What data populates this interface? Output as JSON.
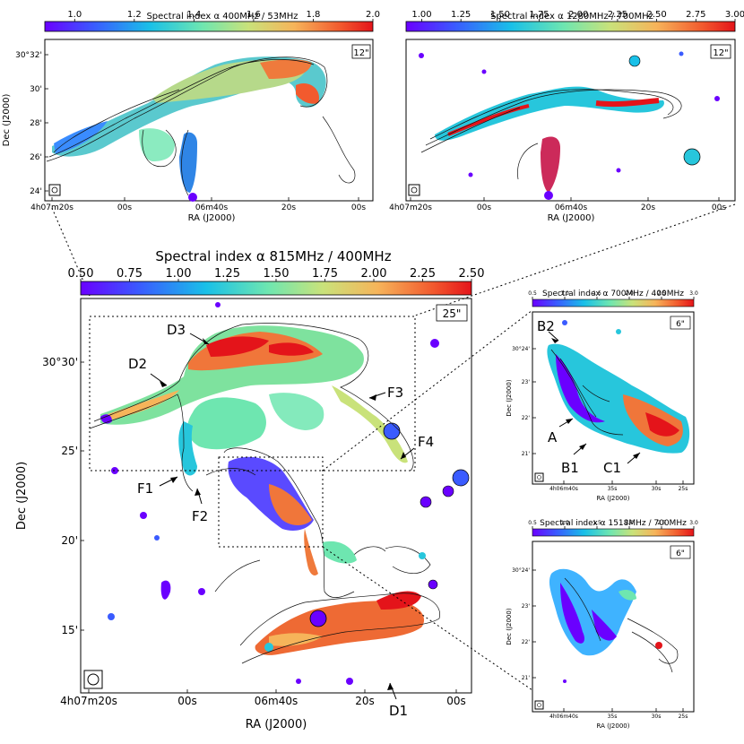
{
  "chart_data": [
    {
      "type": "heatmap",
      "panel": "top-left",
      "colorbar": {
        "title": "Spectral index α 400MHz / 53MHz",
        "ticks": [
          "1.0",
          "1.2",
          "1.4",
          "1.6",
          "1.8",
          "2.0"
        ],
        "range": [
          0.9,
          2.0
        ]
      },
      "beam_label": "12\"",
      "ylabel": "Dec (J2000)",
      "xlabel": "RA (J2000)",
      "yticks": [
        "30°32'",
        "30'",
        "28'",
        "26'",
        "24'"
      ],
      "xticks": [
        "4h07m20s",
        "00s",
        "06m40s",
        "20s",
        "00s"
      ]
    },
    {
      "type": "heatmap",
      "panel": "top-right",
      "colorbar": {
        "title": "Spectral index α 1280MHz / 700MHz",
        "ticks": [
          "1.00",
          "1.25",
          "1.50",
          "1.75",
          "2.00",
          "2.25",
          "2.50",
          "2.75",
          "3.00"
        ],
        "range": [
          0.9,
          3.0
        ]
      },
      "beam_label": "12\"",
      "xlabel": "RA (J2000)",
      "xticks": [
        "4h07m20s",
        "00s",
        "06m40s",
        "20s",
        "00s"
      ]
    },
    {
      "type": "heatmap",
      "panel": "main",
      "colorbar": {
        "title": "Spectral index α 815MHz / 400MHz",
        "ticks": [
          "0.50",
          "0.75",
          "1.00",
          "1.25",
          "1.50",
          "1.75",
          "2.00",
          "2.25",
          "2.50"
        ],
        "range": [
          0.5,
          2.5
        ]
      },
      "beam_label": "25\"",
      "ylabel": "Dec (J2000)",
      "xlabel": "RA (J2000)",
      "yticks": [
        "30°30'",
        "25'",
        "20'",
        "15'"
      ],
      "xticks": [
        "4h07m20s",
        "00s",
        "06m40s",
        "20s",
        "00s"
      ],
      "annotations": [
        "D3",
        "D2",
        "F3",
        "F4",
        "F1",
        "F2",
        "D1"
      ]
    },
    {
      "type": "heatmap",
      "panel": "zoom-upper",
      "colorbar": {
        "title": "Spectral index α 700MHz / 400MHz",
        "ticks": [
          "0.5",
          "1.0",
          "1.5",
          "2.0",
          "2.5",
          "3.0"
        ],
        "range": [
          0.5,
          3.0
        ]
      },
      "beam_label": "6\"",
      "ylabel": "Dec (J2000)",
      "xlabel": "RA (J2000)",
      "yticks": [
        "30°24'",
        "23'",
        "22'",
        "21'"
      ],
      "xticks": [
        "4h06m40s",
        "35s",
        "30s",
        "25s"
      ],
      "annotations": [
        "B2",
        "A",
        "B1",
        "C1"
      ]
    },
    {
      "type": "heatmap",
      "panel": "zoom-lower",
      "colorbar": {
        "title": "Spectral index α 1518MHz / 700MHz",
        "ticks": [
          "0.5",
          "1.0",
          "1.5",
          "2.0",
          "2.5",
          "3.0"
        ],
        "range": [
          0.5,
          3.0
        ]
      },
      "beam_label": "6\"",
      "ylabel": "Dec (J2000)",
      "xlabel": "RA (J2000)",
      "yticks": [
        "30°24'",
        "23'",
        "22'",
        "21'"
      ],
      "xticks": [
        "4h06m40s",
        "35s",
        "30s",
        "25s"
      ]
    }
  ]
}
